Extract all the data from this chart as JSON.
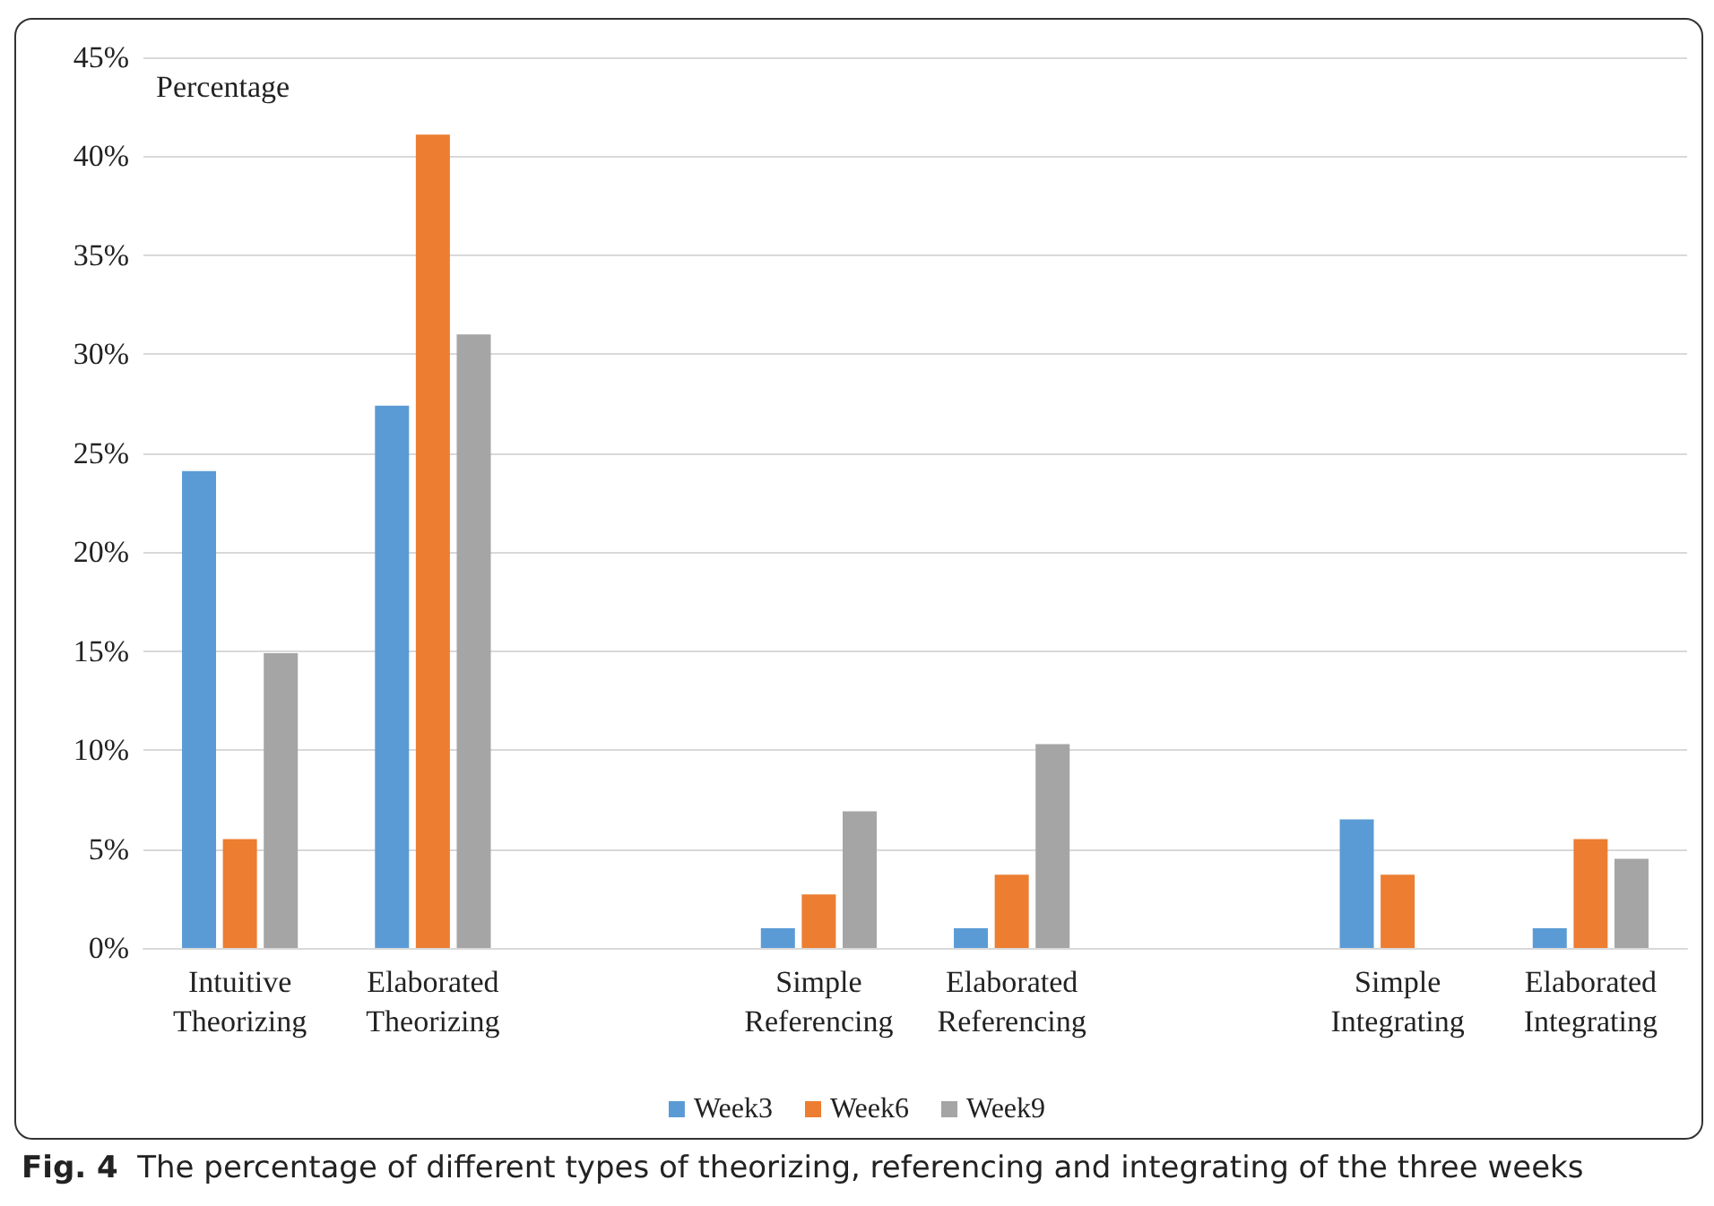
{
  "chart_data": {
    "type": "bar",
    "ylabel": "Percentage",
    "categories": [
      "Intuitive Theorizing",
      "Elaborated Theorizing",
      null,
      "Simple Referencing",
      "Elaborated Referencing",
      null,
      "Simple Integrating",
      "Elaborated Integrating"
    ],
    "series": [
      {
        "name": "Week3",
        "color": "#5b9bd5",
        "values": [
          24.1,
          27.4,
          null,
          1.0,
          1.0,
          null,
          6.5,
          1.0
        ]
      },
      {
        "name": "Week6",
        "color": "#ed7d31",
        "values": [
          5.5,
          41.1,
          null,
          2.7,
          3.7,
          null,
          3.7,
          5.5
        ]
      },
      {
        "name": "Week9",
        "color": "#a5a5a5",
        "values": [
          14.9,
          31.0,
          null,
          6.9,
          10.3,
          null,
          null,
          4.5
        ]
      }
    ],
    "ylim": [
      0,
      45
    ],
    "yticks": [
      {
        "value": 0,
        "label": "0%"
      },
      {
        "value": 5,
        "label": "5%"
      },
      {
        "value": 10,
        "label": "10%"
      },
      {
        "value": 15,
        "label": "15%"
      },
      {
        "value": 20,
        "label": "20%"
      },
      {
        "value": 25,
        "label": "25%"
      },
      {
        "value": 30,
        "label": "30%"
      },
      {
        "value": 35,
        "label": "35%"
      },
      {
        "value": 40,
        "label": "40%"
      },
      {
        "value": 45,
        "label": "45%"
      }
    ],
    "grid": "y",
    "legend": "bottom",
    "annotations": [
      "Fig. 4  The percentage of different types of theorizing, referencing and integrating of the three weeks"
    ]
  }
}
